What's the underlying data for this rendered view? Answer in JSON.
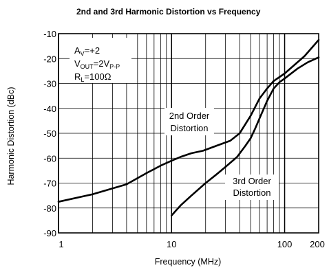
{
  "chart_data": {
    "type": "line",
    "title": "2nd and 3rd Harmonic Distortion vs Frequency",
    "xlabel": "Frequency (MHz)",
    "ylabel": "Harmonic Distortion (dBc)",
    "x_scale": "log",
    "xlim": [
      1,
      200
    ],
    "ylim": [
      -90,
      -10
    ],
    "x_ticks": [
      1,
      10,
      100,
      200
    ],
    "x_tick_labels": [
      "1",
      "10",
      "100",
      "200"
    ],
    "y_ticks": [
      -10,
      -20,
      -30,
      -40,
      -50,
      -60,
      -70,
      -80,
      -90
    ],
    "y_tick_labels": [
      "-10",
      "-20",
      "-30",
      "-40",
      "-50",
      "-60",
      "-70",
      "-80",
      "-90"
    ],
    "grid": true,
    "conditions": {
      "line1_main": "A",
      "line1_sub": "V",
      "line1_rest": "=+2",
      "line2_main": "V",
      "line2_sub": "OUT",
      "line2_rest": "=2V",
      "line2_sub2": "P-P",
      "line3_main": "R",
      "line3_sub": "L",
      "line3_rest": "=100Ω"
    },
    "series": [
      {
        "name": "2nd Order Distortion",
        "label_lines": [
          "2nd Order",
          "Distortion"
        ],
        "x": [
          1,
          2,
          4,
          6,
          8,
          10,
          12,
          15,
          19,
          25,
          33,
          40,
          50,
          60,
          70,
          80,
          100,
          150,
          200
        ],
        "y": [
          -77.5,
          -74.5,
          -70.5,
          -66,
          -63,
          -61,
          -59.5,
          -58,
          -57,
          -55,
          -53,
          -50,
          -43,
          -36,
          -32,
          -29,
          -26,
          -19,
          -12.5
        ]
      },
      {
        "name": "3rd Order Distortion",
        "label_lines": [
          "3rd Order",
          "Distortion"
        ],
        "x": [
          10,
          12,
          15,
          20,
          25,
          30,
          38,
          45,
          50,
          55,
          60,
          70,
          80,
          90,
          100,
          130,
          160,
          200
        ],
        "y": [
          -83,
          -79,
          -75,
          -70,
          -66.5,
          -63.5,
          -59.5,
          -55,
          -52,
          -48,
          -44,
          -37,
          -32,
          -29.5,
          -28,
          -24,
          -21.5,
          -19.5
        ]
      }
    ]
  }
}
